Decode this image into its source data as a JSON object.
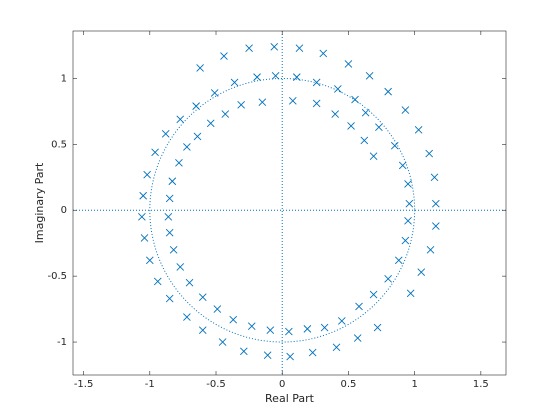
{
  "chart_data": {
    "type": "scatter",
    "xlabel": "Real Part",
    "ylabel": "Imaginary Part",
    "xlim": [
      -1.58,
      1.69
    ],
    "ylim": [
      -1.25,
      1.36
    ],
    "xticks": [
      -1.5,
      -1,
      -0.5,
      0,
      0.5,
      1,
      1.5
    ],
    "yticks": [
      -1,
      -0.5,
      0,
      0.5,
      1
    ],
    "series": [
      {
        "color": "#0072bd",
        "x": [
          -0.06,
          0.13,
          -0.25,
          0.31,
          -0.44,
          0.5,
          -0.62,
          0.66,
          0.8,
          0.93,
          1.03,
          1.11,
          1.15,
          1.16,
          1.16,
          1.12,
          1.05,
          0.97,
          -0.05,
          0.11,
          0.26,
          0.42,
          0.55,
          0.63,
          0.73,
          0.85,
          0.91,
          0.95,
          0.96,
          0.95,
          0.93,
          0.88,
          0.8,
          0.69,
          0.58,
          0.45,
          0.32,
          0.19,
          -0.19,
          -0.36,
          -0.51,
          -0.65,
          -0.77,
          -0.88,
          -0.96,
          -1.02,
          -1.05,
          -1.06,
          -1.04,
          -1.0,
          -0.94,
          -0.85,
          -0.72,
          -0.6,
          -0.45,
          -0.29,
          -0.11,
          0.06,
          0.23,
          0.41,
          0.57,
          0.72,
          -0.15,
          -0.31,
          -0.43,
          -0.54,
          -0.64,
          -0.72,
          -0.78,
          -0.83,
          -0.85,
          -0.86,
          -0.85,
          -0.82,
          -0.77,
          -0.7,
          -0.6,
          -0.49,
          -0.37,
          -0.23,
          -0.09,
          0.05,
          0.08,
          0.26,
          0.4,
          0.52,
          0.62,
          0.69
        ],
        "values": [
          1.24,
          1.23,
          1.23,
          1.19,
          1.17,
          1.11,
          1.08,
          1.02,
          0.9,
          0.76,
          0.61,
          0.43,
          0.25,
          0.05,
          -0.12,
          -0.3,
          -0.47,
          -0.63,
          1.02,
          1.01,
          0.97,
          0.92,
          0.84,
          0.74,
          0.63,
          0.49,
          0.34,
          0.2,
          0.05,
          -0.08,
          -0.23,
          -0.38,
          -0.52,
          -0.64,
          -0.73,
          -0.84,
          -0.89,
          -0.9,
          1.01,
          0.97,
          0.89,
          0.79,
          0.69,
          0.58,
          0.44,
          0.27,
          0.11,
          -0.05,
          -0.21,
          -0.38,
          -0.54,
          -0.67,
          -0.81,
          -0.91,
          -1.0,
          -1.07,
          -1.1,
          -1.11,
          -1.08,
          -1.04,
          -0.97,
          -0.89,
          0.82,
          0.8,
          0.73,
          0.66,
          0.56,
          0.48,
          0.36,
          0.22,
          0.09,
          -0.05,
          -0.17,
          -0.3,
          -0.43,
          -0.55,
          -0.66,
          -0.75,
          -0.83,
          -0.88,
          -0.91,
          -0.92,
          0.83,
          0.81,
          0.73,
          0.64,
          0.53,
          0.41
        ]
      }
    ]
  }
}
